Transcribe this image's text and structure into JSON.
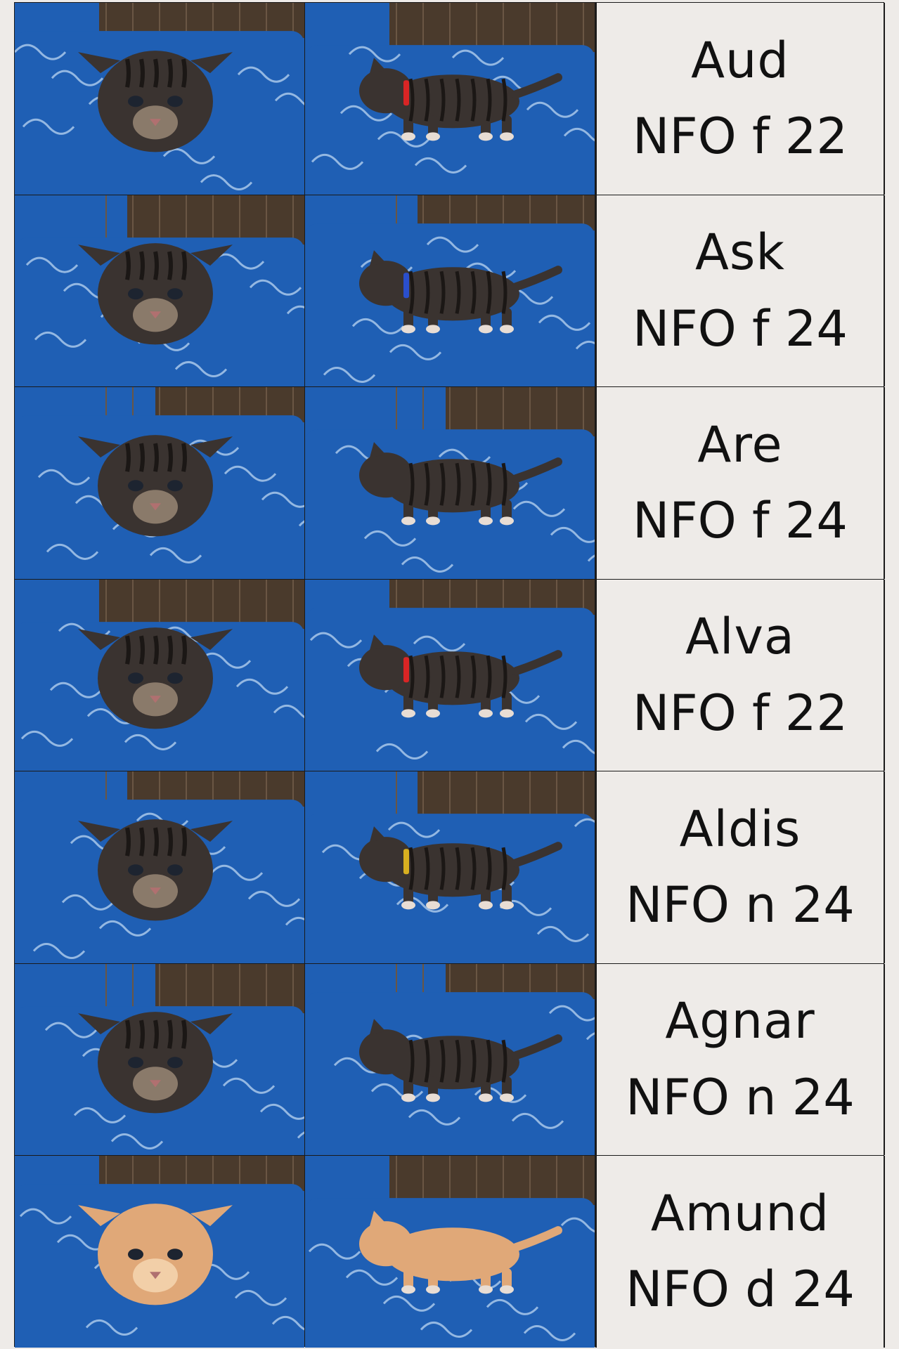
{
  "colors": {
    "blanket_blue": "#1f5fb4",
    "blanket_pattern": "#bcd6f2",
    "wicker_brown": "#4a3a2c",
    "tabby_dark": "#3a3330",
    "tabby_light": "#8a7a6a",
    "ginger": "#e0a878",
    "label_bg": "#eeebe8",
    "border": "#1a1a1a"
  },
  "kittens": [
    {
      "name": "Aud",
      "code": "NFO f 22",
      "coat": "tabby",
      "collar": "red"
    },
    {
      "name": "Ask",
      "code": "NFO f 24",
      "coat": "tabby",
      "collar": "blue"
    },
    {
      "name": "Are",
      "code": "NFO f 24",
      "coat": "tabby",
      "collar": ""
    },
    {
      "name": "Alva",
      "code": "NFO f 22",
      "coat": "tabby",
      "collar": "red"
    },
    {
      "name": "Aldis",
      "code": "NFO n 24",
      "coat": "tabby",
      "collar": "yellow"
    },
    {
      "name": "Agnar",
      "code": "NFO n 24",
      "coat": "tabby",
      "collar": ""
    },
    {
      "name": "Amund",
      "code": "NFO d 24",
      "coat": "ginger",
      "collar": ""
    }
  ]
}
